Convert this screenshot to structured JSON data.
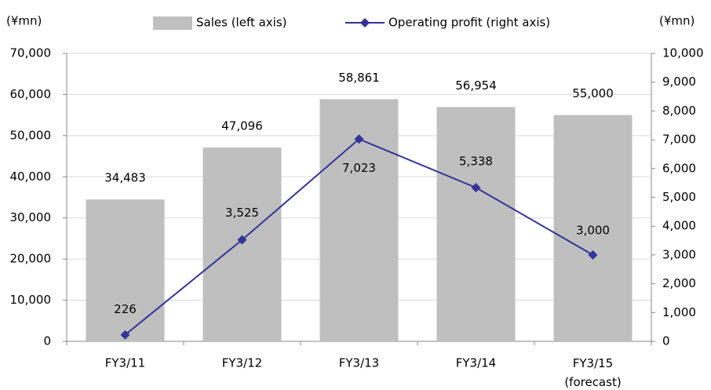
{
  "chart_data": {
    "type": "bar",
    "y_unit": "(¥mn)",
    "y2_unit": "(¥mn)",
    "categories": [
      "FY3/11",
      "FY3/12",
      "FY3/13",
      "FY3/14",
      "FY3/15\n(forecast)"
    ],
    "series": [
      {
        "name": "Sales (left axis)",
        "type": "bar",
        "color": "#bfbfbf",
        "values": [
          34483,
          47096,
          58861,
          56954,
          55000
        ],
        "value_labels": [
          "34,483",
          "47,096",
          "58,861",
          "56,954",
          "55,000"
        ]
      },
      {
        "name": "Operating profit (right axis)",
        "type": "line",
        "axis": "y2",
        "color": "#333399",
        "values": [
          226,
          3525,
          7023,
          5338,
          3000
        ],
        "value_labels": [
          "226",
          "3,525",
          "7,023",
          "5,338",
          "3,000"
        ]
      }
    ],
    "ylim": [
      0,
      70000
    ],
    "yticks": [
      0,
      {
        "value": 10000,
        "label": "10,000"
      },
      {
        "value": 20000,
        "label": "20,000"
      },
      {
        "value": 30000,
        "label": "30,000"
      },
      {
        "value": 40000,
        "label": "40,000"
      },
      {
        "value": 50000,
        "label": "50,000"
      },
      {
        "value": 60000,
        "label": "60,000"
      },
      {
        "value": 70000,
        "label": "70,000"
      }
    ],
    "y2lim": [
      0,
      10000
    ],
    "y2ticks": [
      0,
      {
        "value": 1000,
        "label": "1,000"
      },
      {
        "value": 2000,
        "label": "2,000"
      },
      {
        "value": 3000,
        "label": "3,000"
      },
      {
        "value": 4000,
        "label": "4,000"
      },
      {
        "value": 5000,
        "label": "5,000"
      },
      {
        "value": 6000,
        "label": "6,000"
      },
      {
        "value": 7000,
        "label": "7,000"
      },
      {
        "value": 8000,
        "label": "8,000"
      },
      {
        "value": 9000,
        "label": "9,000"
      },
      {
        "value": 10000,
        "label": "10,000"
      }
    ],
    "grid": true
  }
}
